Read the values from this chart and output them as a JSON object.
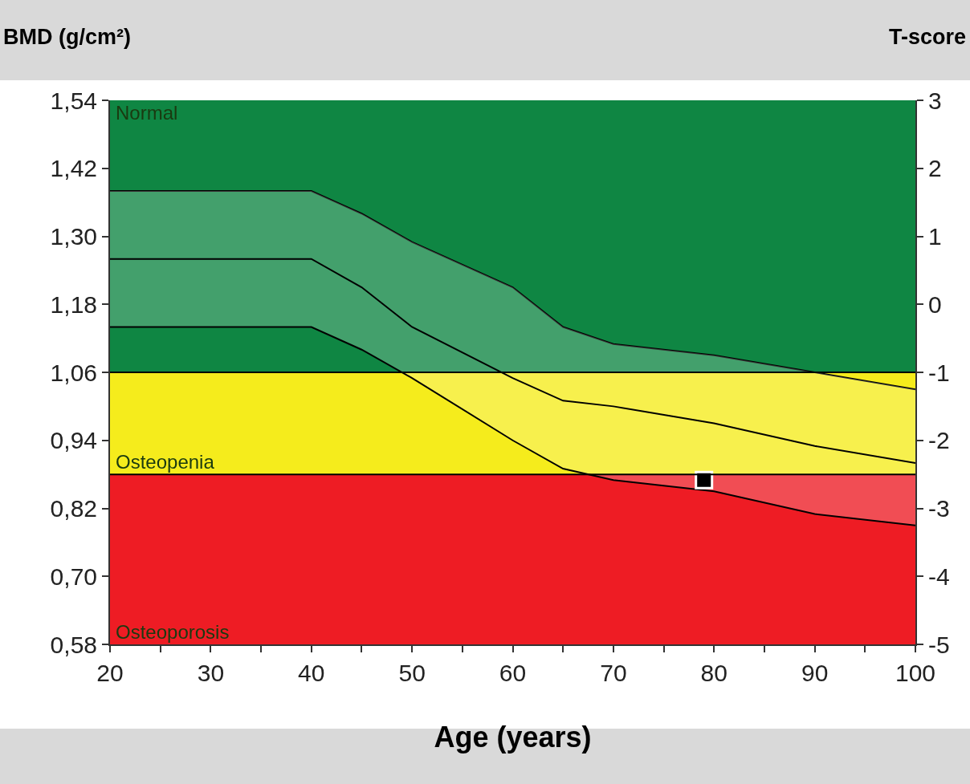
{
  "chart_data": {
    "type": "line",
    "xlabel": "Age (years)",
    "ylabel": "BMD (g/cm²)",
    "y2label": "T-score",
    "x": [
      20,
      40,
      45,
      50,
      60,
      65,
      70,
      80,
      90,
      100
    ],
    "series": [
      {
        "color": "#000000",
        "values": [
          1.38,
          1.38,
          1.34,
          1.29,
          1.21,
          1.14,
          1.11,
          1.09,
          1.06,
          1.03
        ]
      },
      {
        "color": "#000000",
        "values": [
          1.26,
          1.26,
          1.21,
          1.14,
          1.05,
          1.01,
          1.0,
          0.97,
          0.93,
          0.9
        ],
        "lower": [
          1.14,
          1.14,
          1.1,
          1.05,
          0.94,
          0.89,
          0.87,
          0.85,
          0.81,
          0.79
        ],
        "upper": [
          1.38,
          1.38,
          1.34,
          1.29,
          1.21,
          1.14,
          1.11,
          1.09,
          1.06,
          1.03
        ]
      },
      {
        "color": "#000000",
        "values": [
          1.14,
          1.14,
          1.1,
          1.05,
          0.94,
          0.89,
          0.87,
          0.85,
          0.81,
          0.79
        ]
      },
      {
        "type": "scatter",
        "color": "#000000",
        "marker": "square",
        "x": [
          79
        ],
        "values": [
          0.87
        ]
      }
    ],
    "bands": [
      {
        "axis": "y",
        "from": 1.06,
        "to": 1.54,
        "label": "Normal",
        "color": "#0f8643"
      },
      {
        "axis": "y",
        "from": 0.88,
        "to": 1.06,
        "label": "Osteopenia",
        "color": "#f5ec1c"
      },
      {
        "axis": "y",
        "from": 0.58,
        "to": 0.88,
        "label": "Osteoporosis",
        "color": "#ee1c24"
      }
    ],
    "ref_lines": [
      {
        "axis": "y",
        "value": 1.06,
        "color": "#000000"
      },
      {
        "axis": "y",
        "value": 0.88,
        "color": "#000000"
      }
    ],
    "xlim": [
      20,
      100
    ],
    "xticks": [
      20,
      {
        "value": 25,
        "label": null
      },
      30,
      {
        "value": 35,
        "label": null
      },
      40,
      {
        "value": 45,
        "label": null
      },
      50,
      {
        "value": 55,
        "label": null
      },
      60,
      {
        "value": 65,
        "label": null
      },
      70,
      {
        "value": 75,
        "label": null
      },
      80,
      {
        "value": 85,
        "label": null
      },
      90,
      {
        "value": 95,
        "label": null
      },
      100
    ],
    "ylim": [
      0.58,
      1.54
    ],
    "yticks": [
      {
        "value": 0.58,
        "label": "0,58"
      },
      {
        "value": 0.7,
        "label": "0,70"
      },
      {
        "value": 0.82,
        "label": "0,82"
      },
      {
        "value": 0.94,
        "label": "0,94"
      },
      {
        "value": 1.06,
        "label": "1,06"
      },
      {
        "value": 1.18,
        "label": "1,18"
      },
      {
        "value": 1.3,
        "label": "1,30"
      },
      {
        "value": 1.42,
        "label": "1,42"
      },
      {
        "value": 1.54,
        "label": "1,54"
      }
    ],
    "y2lim": [
      -5,
      3
    ],
    "y2ticks": [
      -5,
      -4,
      -3,
      -2,
      -1,
      0,
      1,
      2,
      3
    ],
    "grid": false
  }
}
